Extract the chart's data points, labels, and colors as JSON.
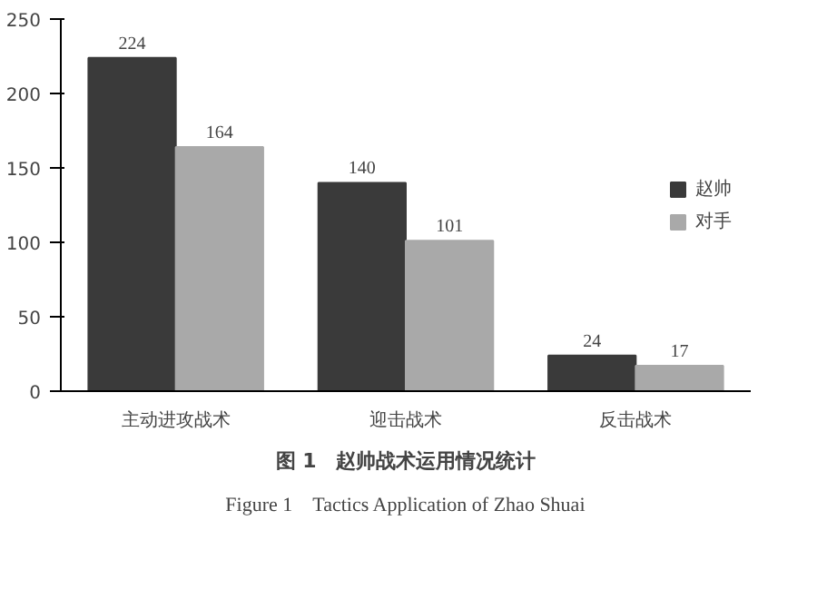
{
  "chart_data": {
    "type": "bar",
    "title": "图 1　赵帅战术运用情况统计",
    "subtitle": "Figure 1　Tactics Application of Zhao Shuai",
    "categories": [
      "主动进攻战术",
      "迎击战术",
      "反击战术"
    ],
    "series": [
      {
        "name": "赵帅",
        "color": "#3a3a3a",
        "values": [
          224,
          140,
          24
        ]
      },
      {
        "name": "对手",
        "color": "#a9a9a9",
        "values": [
          164,
          101,
          17
        ]
      }
    ],
    "ylim": [
      0,
      250
    ],
    "yticks": [
      0,
      50,
      100,
      150,
      200,
      250
    ],
    "grid": false,
    "legend": "right",
    "data_labels": true
  }
}
